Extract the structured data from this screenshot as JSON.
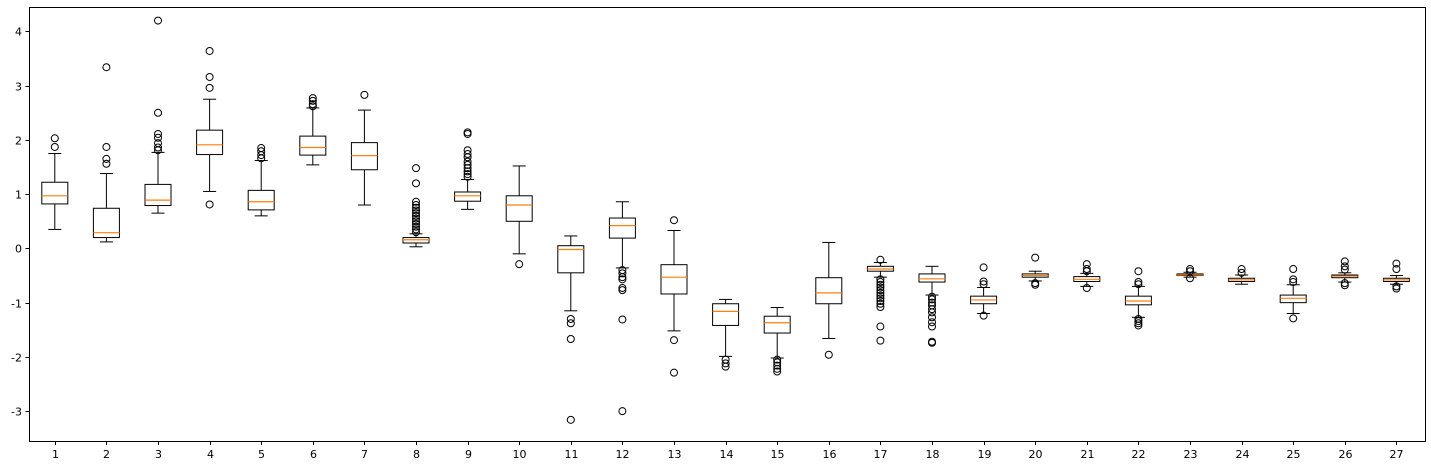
{
  "chart_data": {
    "type": "box",
    "title": "",
    "xlabel": "",
    "ylabel": "",
    "ylim": [
      -3.55,
      4.45
    ],
    "yticks": [
      -3,
      -2,
      -1,
      0,
      1,
      2,
      3,
      4
    ],
    "grid": false,
    "colors": {
      "box": "#000000",
      "median": "#ff7f0e",
      "flier": "#000000"
    },
    "categories": [
      "1",
      "2",
      "3",
      "4",
      "5",
      "6",
      "7",
      "8",
      "9",
      "10",
      "11",
      "12",
      "13",
      "14",
      "15",
      "16",
      "17",
      "18",
      "19",
      "20",
      "21",
      "22",
      "23",
      "24",
      "25",
      "26",
      "27"
    ],
    "boxes": [
      {
        "whislo": 0.35,
        "q1": 0.82,
        "med": 0.97,
        "q3": 1.22,
        "whishi": 1.75,
        "fliers": [
          1.87,
          2.03
        ]
      },
      {
        "whislo": 0.12,
        "q1": 0.2,
        "med": 0.29,
        "q3": 0.74,
        "whishi": 1.38,
        "fliers": [
          1.56,
          1.65,
          1.87,
          3.34
        ]
      },
      {
        "whislo": 0.65,
        "q1": 0.79,
        "med": 0.89,
        "q3": 1.18,
        "whishi": 1.77,
        "fliers": [
          1.81,
          1.86,
          1.94,
          2.04,
          2.11,
          2.5,
          4.2
        ]
      },
      {
        "whislo": 1.05,
        "q1": 1.73,
        "med": 1.91,
        "q3": 2.18,
        "whishi": 2.75,
        "fliers": [
          0.81,
          2.96,
          3.16,
          3.64
        ]
      },
      {
        "whislo": 0.6,
        "q1": 0.71,
        "med": 0.86,
        "q3": 1.07,
        "whishi": 1.62,
        "fliers": [
          1.66,
          1.72,
          1.79,
          1.85
        ]
      },
      {
        "whislo": 1.54,
        "q1": 1.72,
        "med": 1.86,
        "q3": 2.07,
        "whishi": 2.59,
        "fliers": [
          2.62,
          2.66,
          2.72,
          2.77
        ]
      },
      {
        "whislo": 0.8,
        "q1": 1.45,
        "med": 1.71,
        "q3": 1.95,
        "whishi": 2.55,
        "fliers": [
          2.83
        ]
      },
      {
        "whislo": 0.03,
        "q1": 0.1,
        "med": 0.16,
        "q3": 0.2,
        "whishi": 0.27,
        "fliers": [
          0.3,
          0.35,
          0.4,
          0.45,
          0.5,
          0.55,
          0.6,
          0.65,
          0.7,
          0.75,
          0.8,
          0.86,
          1.2,
          1.48
        ]
      },
      {
        "whislo": 0.72,
        "q1": 0.87,
        "med": 0.97,
        "q3": 1.04,
        "whishi": 1.27,
        "fliers": [
          1.32,
          1.37,
          1.42,
          1.48,
          1.54,
          1.6,
          1.68,
          1.74,
          1.81,
          2.11,
          2.14
        ]
      },
      {
        "whislo": -0.1,
        "q1": 0.5,
        "med": 0.8,
        "q3": 0.97,
        "whishi": 1.52,
        "fliers": [
          -0.29
        ]
      },
      {
        "whislo": -1.15,
        "q1": -0.45,
        "med": -0.02,
        "q3": 0.05,
        "whishi": 0.23,
        "fliers": [
          -1.3,
          -1.38,
          -1.67,
          -3.16
        ]
      },
      {
        "whislo": -0.36,
        "q1": 0.19,
        "med": 0.42,
        "q3": 0.56,
        "whishi": 0.86,
        "fliers": [
          -0.4,
          -0.46,
          -0.53,
          -0.57,
          -0.73,
          -0.77,
          -1.31,
          -3.0
        ]
      },
      {
        "whislo": -1.52,
        "q1": -0.84,
        "med": -0.53,
        "q3": -0.3,
        "whishi": 0.33,
        "fliers": [
          -1.69,
          -2.29,
          0.52
        ]
      },
      {
        "whislo": -1.99,
        "q1": -1.42,
        "med": -1.16,
        "q3": -1.02,
        "whishi": -0.94,
        "fliers": [
          -2.05,
          -2.12,
          -2.18
        ]
      },
      {
        "whislo": -2.02,
        "q1": -1.56,
        "med": -1.37,
        "q3": -1.25,
        "whishi": -1.09,
        "fliers": [
          -2.05,
          -2.1,
          -2.16,
          -2.22,
          -2.27
        ]
      },
      {
        "whislo": -1.66,
        "q1": -1.02,
        "med": -0.82,
        "q3": -0.54,
        "whishi": 0.11,
        "fliers": [
          -1.96
        ]
      },
      {
        "whislo": -0.53,
        "q1": -0.42,
        "med": -0.38,
        "q3": -0.33,
        "whishi": -0.26,
        "fliers": [
          -0.21,
          -0.57,
          -0.62,
          -0.67,
          -0.72,
          -0.77,
          -0.82,
          -0.87,
          -0.92,
          -0.97,
          -1.02,
          -1.08,
          -1.44,
          -1.7
        ]
      },
      {
        "whislo": -0.86,
        "q1": -0.62,
        "med": -0.56,
        "q3": -0.47,
        "whishi": -0.33,
        "fliers": [
          -0.89,
          -0.94,
          -1.0,
          -1.05,
          -1.12,
          -1.18,
          -1.27,
          -1.36,
          -1.44,
          -1.72,
          -1.74
        ]
      },
      {
        "whislo": -1.2,
        "q1": -1.02,
        "med": -0.95,
        "q3": -0.88,
        "whishi": -0.72,
        "fliers": [
          -0.35,
          -0.61,
          -0.66,
          -1.24
        ]
      },
      {
        "whislo": -0.6,
        "q1": -0.53,
        "med": -0.5,
        "q3": -0.47,
        "whishi": -0.42,
        "fliers": [
          -0.17,
          -0.64,
          -0.67
        ]
      },
      {
        "whislo": -0.7,
        "q1": -0.61,
        "med": -0.57,
        "q3": -0.52,
        "whishi": -0.46,
        "fliers": [
          -0.29,
          -0.38,
          -0.42,
          -0.73
        ]
      },
      {
        "whislo": -1.27,
        "q1": -1.04,
        "med": -0.97,
        "q3": -0.88,
        "whishi": -0.7,
        "fliers": [
          -0.42,
          -0.62,
          -0.66,
          -1.3,
          -1.34,
          -1.38,
          -1.42
        ]
      },
      {
        "whislo": -0.53,
        "q1": -0.5,
        "med": -0.49,
        "q3": -0.47,
        "whishi": -0.44,
        "fliers": [
          -0.38,
          -0.42,
          -0.55
        ]
      },
      {
        "whislo": -0.66,
        "q1": -0.61,
        "med": -0.58,
        "q3": -0.55,
        "whishi": -0.49,
        "fliers": [
          -0.38,
          -0.45
        ]
      },
      {
        "whislo": -1.2,
        "q1": -1.0,
        "med": -0.92,
        "q3": -0.86,
        "whishi": -0.67,
        "fliers": [
          -0.38,
          -0.57,
          -0.62,
          -1.29
        ]
      },
      {
        "whislo": -0.62,
        "q1": -0.54,
        "med": -0.51,
        "q3": -0.49,
        "whishi": -0.45,
        "fliers": [
          -0.24,
          -0.33,
          -0.39,
          -0.64,
          -0.68
        ]
      },
      {
        "whislo": -0.66,
        "q1": -0.61,
        "med": -0.58,
        "q3": -0.55,
        "whishi": -0.5,
        "fliers": [
          -0.28,
          -0.38,
          -0.7,
          -0.74
        ]
      }
    ]
  }
}
